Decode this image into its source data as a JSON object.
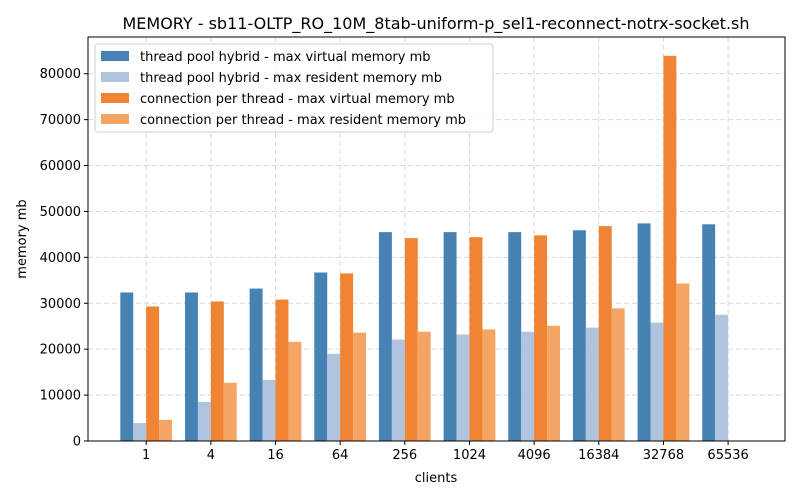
{
  "chart_data": {
    "type": "bar",
    "title": "MEMORY - sb11-OLTP_RO_10M_8tab-uniform-p_sel1-reconnect-notrx-socket.sh",
    "xlabel": "clients",
    "ylabel": "memory mb",
    "ylim": [
      0,
      88000
    ],
    "yticks": [
      0,
      10000,
      20000,
      30000,
      40000,
      50000,
      60000,
      70000,
      80000
    ],
    "grid": true,
    "legend_position": "top-left",
    "categories": [
      "1",
      "4",
      "16",
      "64",
      "256",
      "1024",
      "4096",
      "16384",
      "32768",
      "65536"
    ],
    "series": [
      {
        "name": "thread pool hybrid - max virtual memory mb",
        "color": "#4682b4",
        "values": [
          32350,
          32350,
          33200,
          36700,
          45500,
          45500,
          45500,
          45900,
          47400,
          47200
        ]
      },
      {
        "name": "thread pool hybrid - max resident memory mb",
        "color": "#b0c4de",
        "values": [
          3900,
          8500,
          13300,
          19000,
          22100,
          23200,
          23800,
          24700,
          25800,
          27500
        ]
      },
      {
        "name": "connection per thread - max virtual memory mb",
        "color": "#ee8434",
        "values": [
          29300,
          30400,
          30800,
          36500,
          44200,
          44400,
          44800,
          46800,
          83900,
          null
        ]
      },
      {
        "name": "connection per thread - max resident memory mb",
        "color": "#f4a563",
        "values": [
          4600,
          12700,
          21600,
          23600,
          23800,
          24300,
          25100,
          28900,
          34300,
          null
        ]
      }
    ]
  }
}
